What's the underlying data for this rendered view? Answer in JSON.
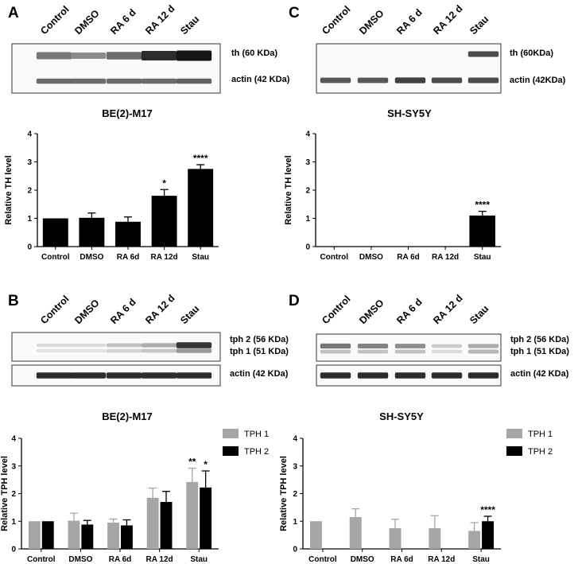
{
  "panels": {
    "A": {
      "label": "A",
      "lanes": [
        "Control",
        "DMSO",
        "RA 6 d",
        "RA 12 d",
        "Stau"
      ],
      "blot_rows": [
        {
          "label": "th (60 KDa)",
          "intensity": [
            0.55,
            0.45,
            0.6,
            0.9,
            1.0
          ]
        },
        {
          "label": "actin (42 KDa)",
          "intensity": [
            0.6,
            0.6,
            0.6,
            0.6,
            0.65
          ]
        }
      ]
    },
    "B": {
      "label": "B",
      "lanes": [
        "Control",
        "DMSO",
        "RA 6 d",
        "RA 12 d",
        "Stau"
      ],
      "blot_rows": [
        {
          "label": "tph 2 (56 KDa)",
          "intensity": [
            0.08,
            0.08,
            0.2,
            0.3,
            0.85
          ]
        },
        {
          "label": "tph 1 (51 KDa)",
          "intensity": [
            0.05,
            0.05,
            0.12,
            0.18,
            0.4
          ]
        },
        {
          "label": "actin (42 KDa)",
          "intensity": [
            0.9,
            0.9,
            0.9,
            0.9,
            0.9
          ]
        }
      ]
    },
    "C": {
      "label": "C",
      "lanes": [
        "Control",
        "DMSO",
        "RA 6 d",
        "RA 12 d",
        "Stau"
      ],
      "blot_rows": [
        {
          "label": "th (60KDa)",
          "intensity": [
            0,
            0,
            0,
            0,
            0.75
          ]
        },
        {
          "label": "actin (42KDa)",
          "intensity": [
            0.7,
            0.7,
            0.8,
            0.75,
            0.75
          ]
        }
      ]
    },
    "D": {
      "label": "D",
      "lanes": [
        "Control",
        "DMSO",
        "RA 6 d",
        "RA 12 d",
        "Stau"
      ],
      "blot_rows": [
        {
          "label": "tph 2 (56 KDa)",
          "intensity": [
            0.55,
            0.5,
            0.45,
            0.15,
            0.3
          ]
        },
        {
          "label": "tph 1 (51 KDa)",
          "intensity": [
            0.2,
            0.2,
            0.2,
            0.08,
            0.25
          ]
        },
        {
          "label": "actin (42 KDa)",
          "intensity": [
            0.9,
            0.9,
            0.9,
            0.9,
            0.9
          ]
        }
      ]
    }
  },
  "chart_data": [
    {
      "id": "A",
      "type": "bar",
      "title": "BE(2)-M17",
      "xlabel": "",
      "ylabel": "Relative TH level",
      "ylim": [
        0,
        4
      ],
      "yticks": [
        0,
        1,
        2,
        3,
        4
      ],
      "categories": [
        "Control",
        "DMSO",
        "RA 6d",
        "RA 12d",
        "Stau"
      ],
      "series": [
        {
          "name": "TH",
          "color": "#000000",
          "values": [
            1.0,
            1.02,
            0.88,
            1.8,
            2.75
          ],
          "errors": [
            0,
            0.17,
            0.17,
            0.22,
            0.15
          ],
          "sig": [
            "",
            "",
            "",
            "*",
            "****"
          ]
        }
      ]
    },
    {
      "id": "C",
      "type": "bar",
      "title": "SH-SY5Y",
      "xlabel": "",
      "ylabel": "Relative TH level",
      "ylim": [
        0,
        4
      ],
      "yticks": [
        0,
        1,
        2,
        3,
        4
      ],
      "categories": [
        "Control",
        "DMSO",
        "RA 6d",
        "RA 12d",
        "Stau"
      ],
      "series": [
        {
          "name": "TH",
          "color": "#000000",
          "values": [
            0,
            0,
            0,
            0,
            1.1
          ],
          "errors": [
            0,
            0,
            0,
            0,
            0.15
          ],
          "sig": [
            "",
            "",
            "",
            "",
            "****"
          ]
        }
      ]
    },
    {
      "id": "B",
      "type": "bar",
      "title": "BE(2)-M17",
      "xlabel": "",
      "ylabel": "Relative TPH level",
      "ylim": [
        0,
        4
      ],
      "yticks": [
        0,
        1,
        2,
        3,
        4
      ],
      "categories": [
        "Control",
        "DMSO",
        "RA 6d",
        "RA 12d",
        "Stau"
      ],
      "legend": "top-right",
      "series": [
        {
          "name": "TPH 1",
          "color": "#a6a6a6",
          "values": [
            1.0,
            1.02,
            0.95,
            1.85,
            2.42
          ],
          "errors": [
            0,
            0.27,
            0.13,
            0.35,
            0.5
          ],
          "sig": [
            "",
            "",
            "",
            "",
            "**"
          ]
        },
        {
          "name": "TPH 2",
          "color": "#000000",
          "values": [
            1.0,
            0.88,
            0.85,
            1.7,
            2.22
          ],
          "errors": [
            0,
            0.15,
            0.2,
            0.38,
            0.6
          ],
          "sig": [
            "",
            "",
            "",
            "",
            "*"
          ]
        }
      ]
    },
    {
      "id": "D",
      "type": "bar",
      "title": "SH-SY5Y",
      "xlabel": "",
      "ylabel": "Relative TPH level",
      "ylim": [
        0,
        4
      ],
      "yticks": [
        0,
        1,
        2,
        3,
        4
      ],
      "categories": [
        "Control",
        "DMSO",
        "RA 6d",
        "RA 12d",
        "Stau"
      ],
      "legend": "top-right",
      "series": [
        {
          "name": "TPH 1",
          "color": "#a6a6a6",
          "values": [
            1.0,
            1.15,
            0.75,
            0.75,
            0.65
          ],
          "errors": [
            0,
            0.3,
            0.32,
            0.45,
            0.3
          ],
          "sig": [
            "",
            "",
            "",
            "",
            ""
          ]
        },
        {
          "name": "TPH 2",
          "color": "#000000",
          "values": [
            0,
            0,
            0,
            0,
            1.0
          ],
          "errors": [
            0,
            0,
            0,
            0,
            0.18
          ],
          "sig": [
            "",
            "",
            "",
            "",
            "****"
          ]
        }
      ]
    }
  ]
}
